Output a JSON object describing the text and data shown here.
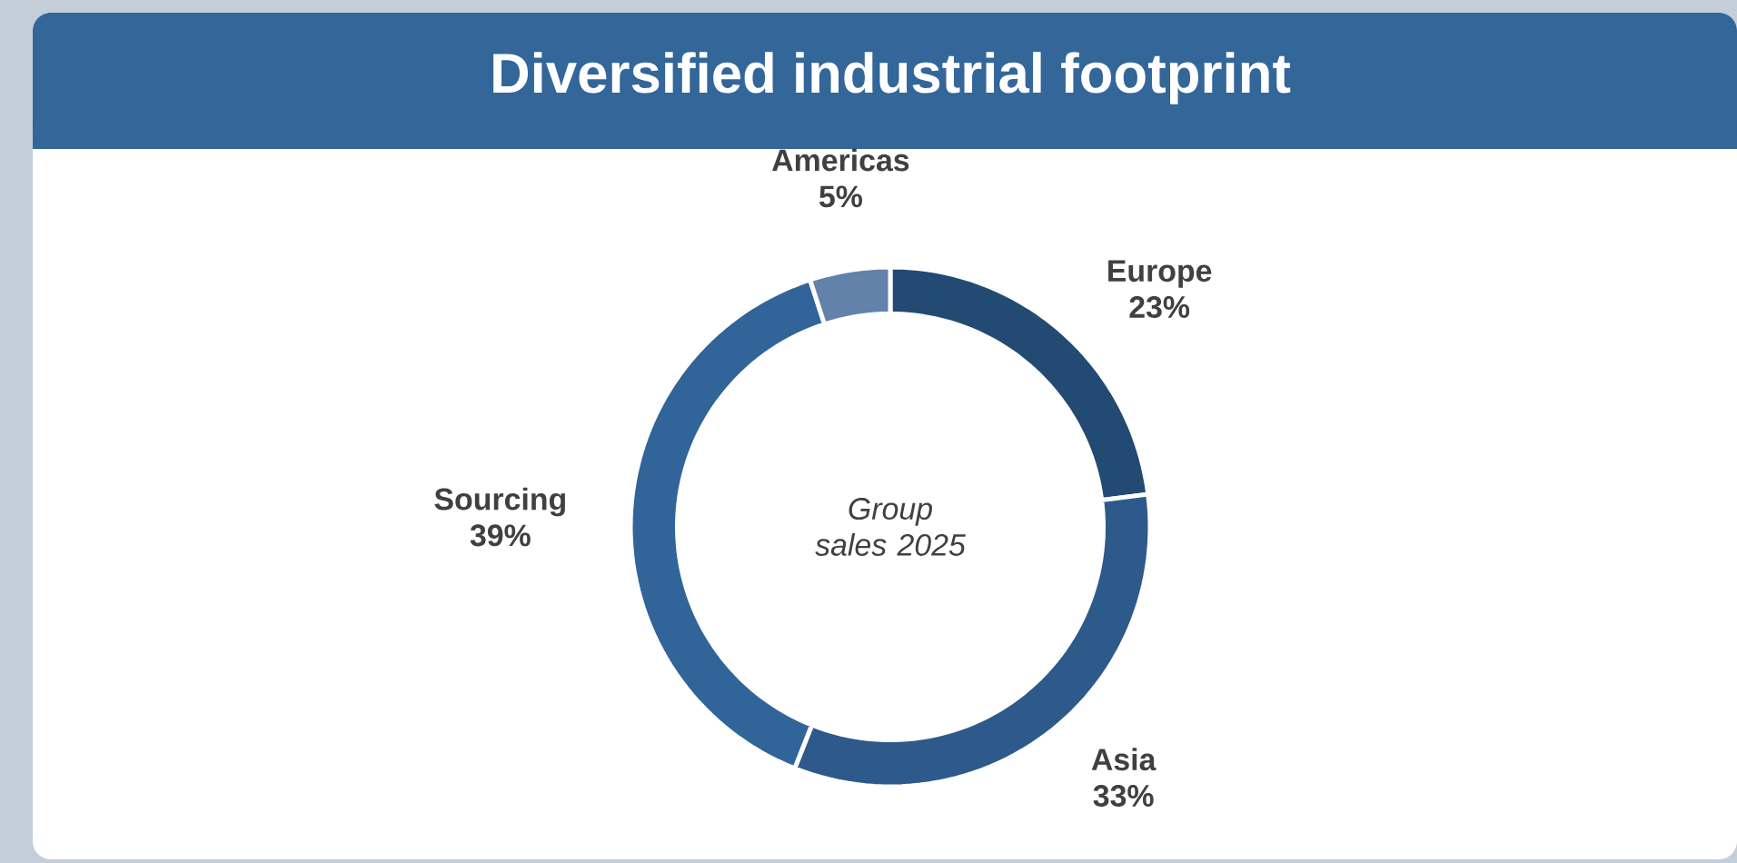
{
  "chart_data": {
    "type": "donut",
    "title": "Diversified industrial footprint",
    "categories": [
      "Europe",
      "Asia",
      "Sourcing",
      "Americas"
    ],
    "values": [
      23,
      33,
      39,
      5
    ],
    "colors": [
      "#234a72",
      "#2d5a8a",
      "#316499",
      "#6282aa"
    ],
    "value_labels": [
      "23%",
      "33%",
      "39%",
      "5%"
    ],
    "annotations": [
      "Group sales 2025"
    ]
  }
}
